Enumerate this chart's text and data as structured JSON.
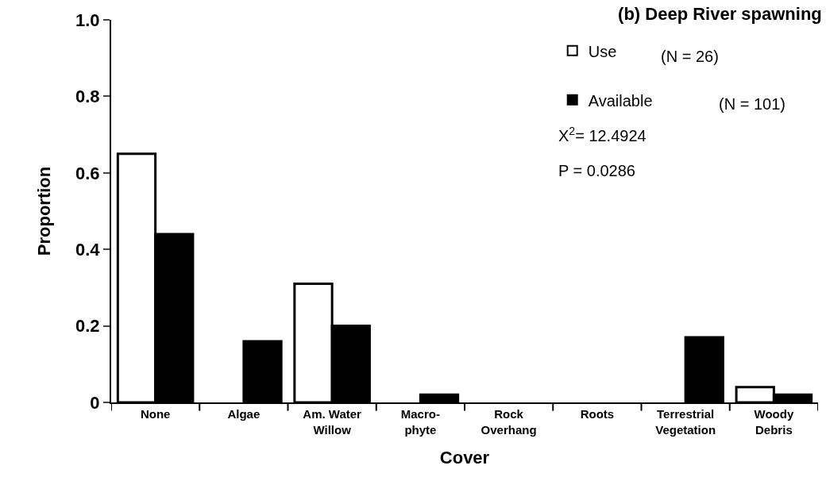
{
  "chart_data": {
    "type": "bar",
    "title": "(b) Deep River spawning",
    "xlabel": "Cover",
    "ylabel": "Proportion",
    "categories": [
      "None",
      "Algae",
      "Am. Water\nWillow",
      "Macro-\nphyte",
      "Rock\nOverhang",
      "Roots",
      "Terrestrial\nVegetation",
      "Woody\nDebris"
    ],
    "series": [
      {
        "name": "Use",
        "color": "#ffffff",
        "values": [
          0.65,
          0,
          0.31,
          0,
          0,
          0,
          0,
          0.04
        ]
      },
      {
        "name": "Available",
        "color": "#000000",
        "values": [
          0.44,
          0.16,
          0.2,
          0.02,
          0,
          0,
          0.17,
          0.02
        ]
      }
    ],
    "annotations": [
      "(N = 26)",
      "(N = 101)",
      "X$^{2}$= 12.4924",
      "P = 0.0286"
    ],
    "ylim": [
      0,
      1
    ],
    "yticks": [
      0,
      0.2,
      0.4,
      0.6,
      0.8,
      {
        "value": 1,
        "label": "1.0"
      }
    ],
    "legend": "top right"
  }
}
